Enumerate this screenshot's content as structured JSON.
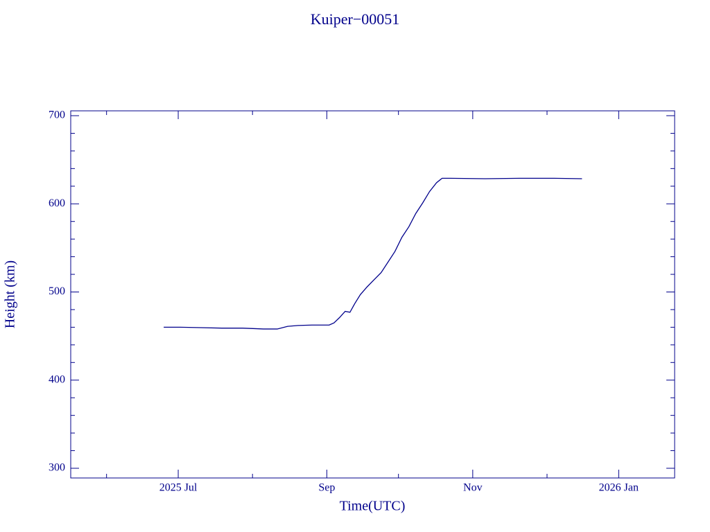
{
  "chart_data": {
    "type": "line",
    "title": "Kuiper−00051",
    "x_label": "Time(UTC)",
    "y_label": "Height (km)",
    "x": [
      2025.4794,
      2025.4984,
      2025.5221,
      2025.5459,
      2025.5697,
      2025.5935,
      2025.6093,
      2025.6212,
      2025.6331,
      2025.6489,
      2025.6687,
      2025.6743,
      2025.6806,
      2025.687,
      2025.6925,
      2025.6981,
      2025.7044,
      2025.7123,
      2025.7202,
      2025.7282,
      2025.7361,
      2025.744,
      2025.7519,
      2025.7599,
      2025.7678,
      2025.7757,
      2025.7836,
      2025.7916,
      2025.7979,
      2025.8074,
      2025.847,
      2025.8866,
      2025.9263,
      2025.958
    ],
    "series": [
      {
        "name": "Kuiper−00051",
        "color": "#00008b",
        "values": [
          460,
          460,
          459.5,
          459,
          459,
          458,
          458,
          461,
          462,
          462.5,
          462.5,
          465,
          471,
          478,
          477,
          487,
          497,
          506,
          514,
          522,
          534,
          546,
          562,
          574,
          589,
          601,
          614,
          624,
          629,
          629,
          628.5,
          629,
          629,
          628.5
        ]
      }
    ],
    "xlim": [
      2025.373,
      2026.064
    ],
    "xticks": [
      {
        "value": 2025.496,
        "label": "2025 Jul"
      },
      {
        "value": 2025.666,
        "label": "Sep"
      },
      {
        "value": 2025.833,
        "label": "Nov"
      },
      {
        "value": 2026.0,
        "label": "2026 Jan"
      }
    ],
    "xminorticks": [
      2025.414,
      2025.581,
      2025.748,
      2025.918
    ],
    "ylim": [
      289,
      705.5
    ],
    "yticks": [
      300,
      400,
      500,
      600,
      700
    ],
    "yminorticks": [
      320,
      340,
      360,
      380,
      420,
      440,
      460,
      480,
      520,
      540,
      560,
      580,
      620,
      640,
      660,
      680
    ],
    "axis_color": "#00008b"
  }
}
